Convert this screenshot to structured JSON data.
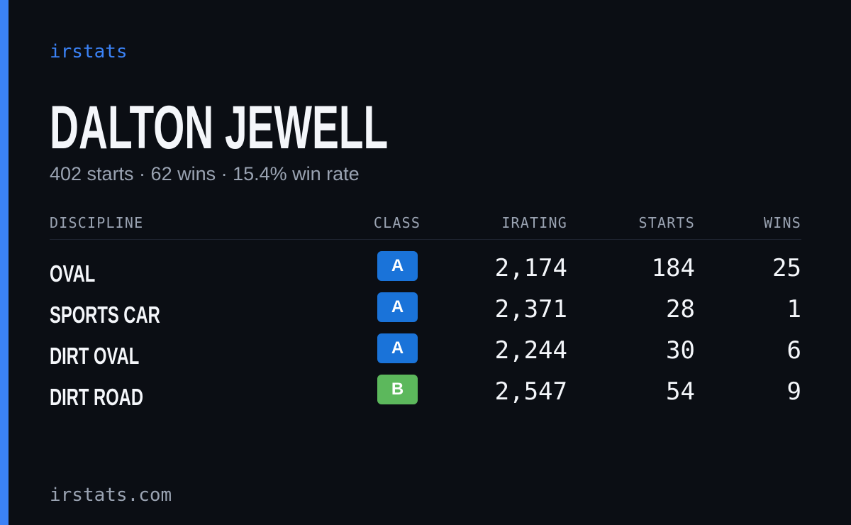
{
  "brand": "irstats",
  "title": "DALTON JEWELL",
  "subtitle": "402 starts · 62 wins · 15.4% win rate",
  "table": {
    "headers": [
      "DISCIPLINE",
      "CLASS",
      "IRATING",
      "STARTS",
      "WINS"
    ],
    "rows": [
      {
        "discipline": "OVAL",
        "class": "A",
        "badge_color": "#1a73d9",
        "irating": "2,174",
        "starts": "184",
        "wins": "25"
      },
      {
        "discipline": "SPORTS CAR",
        "class": "A",
        "badge_color": "#1a73d9",
        "irating": "2,371",
        "starts": "28",
        "wins": "1"
      },
      {
        "discipline": "DIRT OVAL",
        "class": "A",
        "badge_color": "#1a73d9",
        "irating": "2,244",
        "starts": "30",
        "wins": "6"
      },
      {
        "discipline": "DIRT ROAD",
        "class": "B",
        "badge_color": "#5cb85c",
        "irating": "2,547",
        "starts": "54",
        "wins": "9"
      }
    ]
  },
  "footer": "irstats.com"
}
